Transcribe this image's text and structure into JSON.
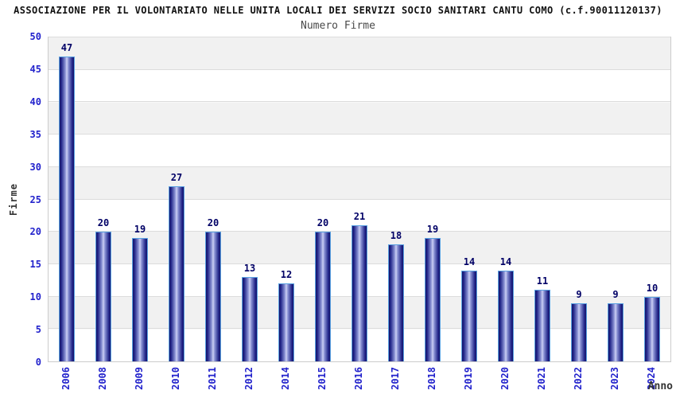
{
  "chart_data": {
    "type": "bar",
    "title": "ASSOCIAZIONE PER IL VOLONTARIATO NELLE UNITA LOCALI DEI SERVIZI SOCIO SANITARI CANTU COMO (c.f.90011120137)",
    "subtitle": "Numero Firme",
    "xlabel": "Anno",
    "ylabel": "Firme",
    "categories": [
      "2006",
      "2008",
      "2009",
      "2010",
      "2011",
      "2012",
      "2014",
      "2015",
      "2016",
      "2017",
      "2018",
      "2019",
      "2020",
      "2021",
      "2022",
      "2023",
      "2024"
    ],
    "values": [
      47,
      20,
      19,
      27,
      20,
      13,
      12,
      20,
      21,
      18,
      19,
      14,
      14,
      11,
      9,
      9,
      10
    ],
    "ylim": [
      0,
      50
    ],
    "yticks": [
      0,
      5,
      10,
      15,
      20,
      25,
      30,
      35,
      40,
      45,
      50
    ],
    "grid": true,
    "legend": "none",
    "bands": "alternating gray/white every 5 units, gray topmost",
    "bar_labels_shown": true,
    "colors": {
      "title": "#111111",
      "subtitle": "#4a4a4a",
      "tick_label": "#2222cc",
      "value_label": "#000066",
      "axis_title": "#333333",
      "bar_dark": "#141468",
      "bar_light": "#cdd1f4",
      "bar_border": "#5aa2e2",
      "band_gray": "#f1f1f1",
      "gridline": "#dcdcdc"
    }
  }
}
